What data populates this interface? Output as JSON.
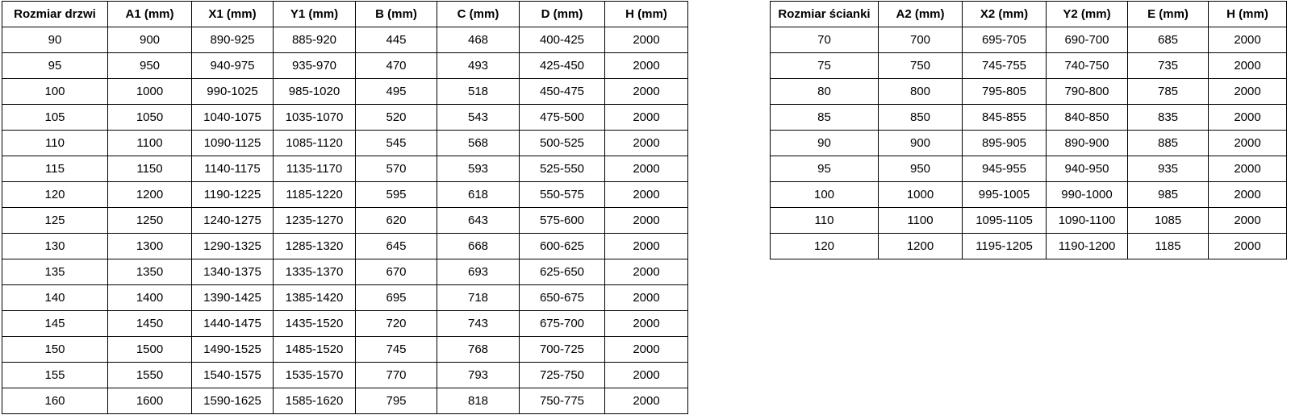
{
  "colors": {
    "background": "#ffffff",
    "text": "#000000",
    "border": "#000000"
  },
  "tables": {
    "door": {
      "title_column": "Rozmiar drzwi",
      "headers": [
        "Rozmiar drzwi",
        "A1 (mm)",
        "X1 (mm)",
        "Y1 (mm)",
        "B (mm)",
        "C (mm)",
        "D (mm)",
        "H (mm)"
      ],
      "rows": [
        [
          "90",
          "900",
          "890-925",
          "885-920",
          "445",
          "468",
          "400-425",
          "2000"
        ],
        [
          "95",
          "950",
          "940-975",
          "935-970",
          "470",
          "493",
          "425-450",
          "2000"
        ],
        [
          "100",
          "1000",
          "990-1025",
          "985-1020",
          "495",
          "518",
          "450-475",
          "2000"
        ],
        [
          "105",
          "1050",
          "1040-1075",
          "1035-1070",
          "520",
          "543",
          "475-500",
          "2000"
        ],
        [
          "110",
          "1100",
          "1090-1125",
          "1085-1120",
          "545",
          "568",
          "500-525",
          "2000"
        ],
        [
          "115",
          "1150",
          "1140-1175",
          "1135-1170",
          "570",
          "593",
          "525-550",
          "2000"
        ],
        [
          "120",
          "1200",
          "1190-1225",
          "1185-1220",
          "595",
          "618",
          "550-575",
          "2000"
        ],
        [
          "125",
          "1250",
          "1240-1275",
          "1235-1270",
          "620",
          "643",
          "575-600",
          "2000"
        ],
        [
          "130",
          "1300",
          "1290-1325",
          "1285-1320",
          "645",
          "668",
          "600-625",
          "2000"
        ],
        [
          "135",
          "1350",
          "1340-1375",
          "1335-1370",
          "670",
          "693",
          "625-650",
          "2000"
        ],
        [
          "140",
          "1400",
          "1390-1425",
          "1385-1420",
          "695",
          "718",
          "650-675",
          "2000"
        ],
        [
          "145",
          "1450",
          "1440-1475",
          "1435-1520",
          "720",
          "743",
          "675-700",
          "2000"
        ],
        [
          "150",
          "1500",
          "1490-1525",
          "1485-1520",
          "745",
          "768",
          "700-725",
          "2000"
        ],
        [
          "155",
          "1550",
          "1540-1575",
          "1535-1570",
          "770",
          "793",
          "725-750",
          "2000"
        ],
        [
          "160",
          "1600",
          "1590-1625",
          "1585-1620",
          "795",
          "818",
          "750-775",
          "2000"
        ]
      ]
    },
    "wall": {
      "title_column": "Rozmiar ścianki",
      "headers": [
        "Rozmiar ścianki",
        "A2 (mm)",
        "X2 (mm)",
        "Y2 (mm)",
        "E (mm)",
        "H (mm)"
      ],
      "rows": [
        [
          "70",
          "700",
          "695-705",
          "690-700",
          "685",
          "2000"
        ],
        [
          "75",
          "750",
          "745-755",
          "740-750",
          "735",
          "2000"
        ],
        [
          "80",
          "800",
          "795-805",
          "790-800",
          "785",
          "2000"
        ],
        [
          "85",
          "850",
          "845-855",
          "840-850",
          "835",
          "2000"
        ],
        [
          "90",
          "900",
          "895-905",
          "890-900",
          "885",
          "2000"
        ],
        [
          "95",
          "950",
          "945-955",
          "940-950",
          "935",
          "2000"
        ],
        [
          "100",
          "1000",
          "995-1005",
          "990-1000",
          "985",
          "2000"
        ],
        [
          "110",
          "1100",
          "1095-1105",
          "1090-1100",
          "1085",
          "2000"
        ],
        [
          "120",
          "1200",
          "1195-1205",
          "1190-1200",
          "1185",
          "2000"
        ]
      ]
    }
  }
}
